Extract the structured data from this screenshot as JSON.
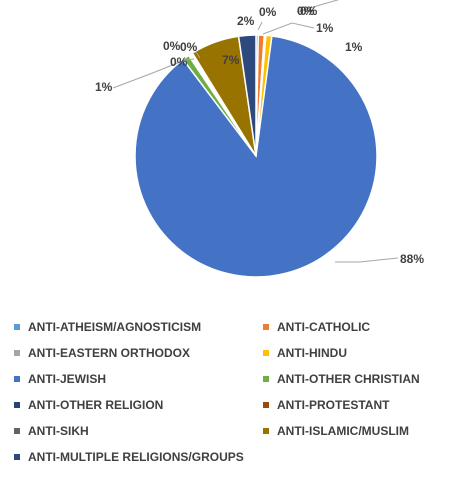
{
  "chart_data": {
    "type": "pie",
    "title": "",
    "series": [
      {
        "name": "ANTI-ATHEISM/AGNOSTICISM",
        "label": "0%",
        "value": 0.3,
        "color": "#5b9bd5"
      },
      {
        "name": "ANTI-CATHOLIC",
        "label": "1%",
        "value": 0.8,
        "color": "#ed7d31"
      },
      {
        "name": "ANTI-EASTERN ORTHODOX",
        "label": "0%",
        "value": 0.2,
        "color": "#a5a5a5"
      },
      {
        "name": "ANTI-HINDU",
        "label": "1%",
        "value": 0.8,
        "color": "#ffc000"
      },
      {
        "name": "ANTI-JEWISH",
        "label": "88%",
        "value": 87.6,
        "color": "#4472c4"
      },
      {
        "name": "ANTI-OTHER CHRISTIAN",
        "label": "1%",
        "value": 0.9,
        "color": "#70ad47"
      },
      {
        "name": "ANTI-OTHER RELIGION",
        "label": "0%",
        "value": 0.2,
        "color": "#264478"
      },
      {
        "name": "ANTI-PROTESTANT",
        "label": "0%",
        "value": 0.2,
        "color": "#9e480e"
      },
      {
        "name": "ANTI-SIKH",
        "label": "0%",
        "value": 0.2,
        "color": "#636363"
      },
      {
        "name": "ANTI-ISLAMIC/MUSLIM",
        "label": "7%",
        "value": 6.5,
        "color": "#997300"
      },
      {
        "name": "ANTI-MULTIPLE RELIGIONS/GROUPS",
        "label": "2%",
        "value": 2.3,
        "color": "#2e4a7d"
      }
    ],
    "legend": "bottom"
  }
}
